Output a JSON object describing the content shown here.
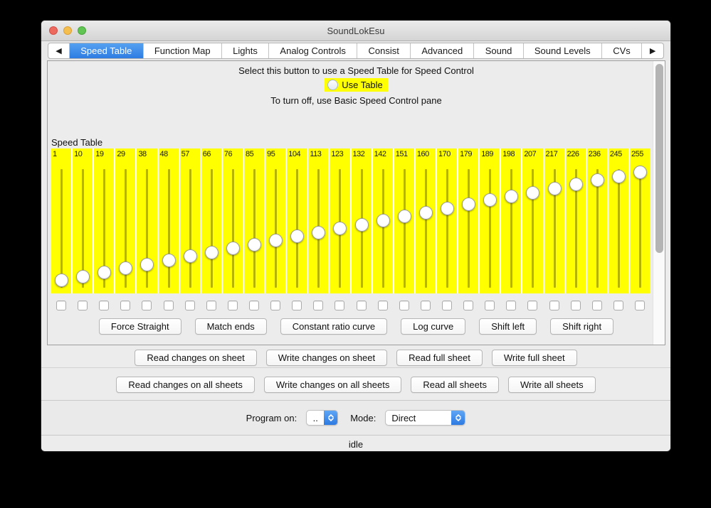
{
  "window": {
    "title": "SoundLokEsu",
    "traffic_lights": [
      "close",
      "minimize",
      "zoom"
    ]
  },
  "tab_bar": {
    "left_arrow": "◀",
    "right_arrow": "▶",
    "tabs": [
      {
        "label": "Speed Table",
        "selected": true
      },
      {
        "label": "Function Map",
        "selected": false
      },
      {
        "label": "Lights",
        "selected": false
      },
      {
        "label": "Analog Controls",
        "selected": false
      },
      {
        "label": "Consist",
        "selected": false
      },
      {
        "label": "Advanced",
        "selected": false
      },
      {
        "label": "Sound",
        "selected": false
      },
      {
        "label": "Sound Levels",
        "selected": false
      },
      {
        "label": "CVs",
        "selected": false
      }
    ]
  },
  "speed_pane": {
    "instruction_top": "Select this button to use a Speed Table for Speed Control",
    "use_table_label": "Use Table",
    "use_table_checked": false,
    "instruction_bottom": "To turn off, use Basic Speed Control pane",
    "table_label": "Speed Table",
    "slider_min": 1,
    "slider_max": 255,
    "slider_values": [
      1,
      10,
      19,
      29,
      38,
      48,
      57,
      66,
      76,
      85,
      95,
      104,
      113,
      123,
      132,
      142,
      151,
      160,
      170,
      179,
      189,
      198,
      207,
      217,
      226,
      236,
      245,
      255
    ],
    "checkboxes_checked": false,
    "curve_buttons": [
      "Force Straight",
      "Match ends",
      "Constant ratio curve",
      "Log curve",
      "Shift left",
      "Shift right"
    ]
  },
  "sheet_buttons": [
    "Read changes on sheet",
    "Write changes on sheet",
    "Read full sheet",
    "Write full sheet"
  ],
  "all_sheet_buttons": [
    "Read changes on all sheets",
    "Write changes on all sheets",
    "Read all sheets",
    "Write all sheets"
  ],
  "programming": {
    "program_on_label": "Program on:",
    "program_on_value": "..",
    "mode_label": "Mode:",
    "mode_value": "Direct"
  },
  "status": "idle",
  "colors": {
    "column_yellow": "#ffff00",
    "slider_track": "#b6b200",
    "selected_tab_blue": "#2e7ce2",
    "highlight_yellow": "#ffff00",
    "window_gray": "#ececec"
  }
}
